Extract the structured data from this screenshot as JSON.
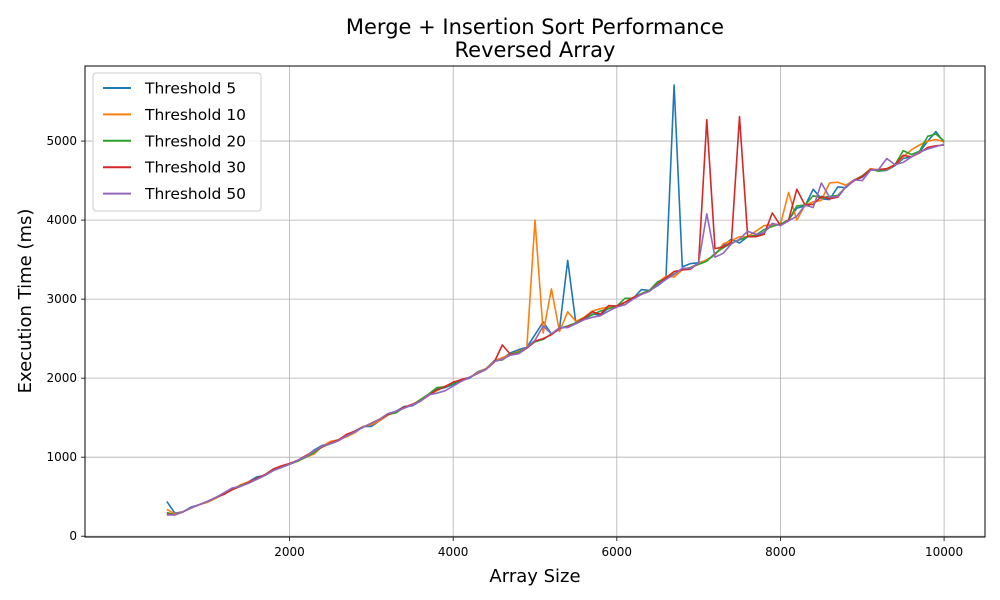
{
  "chart_data": {
    "type": "line",
    "title": "Merge + Insertion Sort Performance",
    "subtitle": "Reversed Array",
    "xlabel": "Array Size",
    "ylabel": "Execution Time (ms)",
    "xlim": [
      -500,
      10500
    ],
    "ylim": [
      -10,
      5950
    ],
    "xticks": [
      2000,
      4000,
      6000,
      8000,
      10000
    ],
    "yticks": [
      0,
      1000,
      2000,
      3000,
      4000,
      5000
    ],
    "grid": true,
    "legend_position": "top-left",
    "x": [
      500,
      600,
      700,
      800,
      900,
      1000,
      1100,
      1200,
      1300,
      1400,
      1500,
      1600,
      1700,
      1800,
      1900,
      2000,
      2100,
      2200,
      2300,
      2400,
      2500,
      2600,
      2700,
      2800,
      2900,
      3000,
      3100,
      3200,
      3300,
      3400,
      3500,
      3600,
      3700,
      3800,
      3900,
      4000,
      4100,
      4200,
      4300,
      4400,
      4500,
      4600,
      4700,
      4800,
      4900,
      5000,
      5100,
      5200,
      5300,
      5400,
      5500,
      5600,
      5700,
      5800,
      5900,
      6000,
      6100,
      6200,
      6300,
      6400,
      6500,
      6600,
      6700,
      6800,
      6900,
      7000,
      7100,
      7200,
      7300,
      7400,
      7500,
      7600,
      7700,
      7800,
      7900,
      8000,
      8100,
      8200,
      8300,
      8400,
      8500,
      8600,
      8700,
      8800,
      8900,
      9000,
      9100,
      9200,
      9300,
      9400,
      9500,
      9600,
      9700,
      9800,
      9900,
      10000
    ],
    "series": [
      {
        "name": "Threshold 5",
        "color": "#1f77b4",
        "values": [
          440,
          290,
          310,
          370,
          400,
          440,
          490,
          530,
          600,
          640,
          690,
          750,
          770,
          830,
          880,
          910,
          960,
          1010,
          1090,
          1150,
          1170,
          1210,
          1280,
          1330,
          1390,
          1390,
          1460,
          1530,
          1580,
          1640,
          1650,
          1710,
          1790,
          1860,
          1880,
          1920,
          1970,
          2000,
          2080,
          2120,
          2210,
          2250,
          2320,
          2360,
          2390,
          2550,
          2710,
          2560,
          2620,
          3490,
          2690,
          2740,
          2810,
          2800,
          2890,
          2900,
          2960,
          3010,
          3120,
          3110,
          3170,
          3250,
          5710,
          3410,
          3450,
          3460,
          3490,
          3560,
          3680,
          3760,
          3710,
          3790,
          3790,
          3850,
          3940,
          3950,
          4000,
          4150,
          4180,
          4390,
          4270,
          4260,
          4420,
          4410,
          4510,
          4540,
          4650,
          4620,
          4630,
          4690,
          4780,
          4800,
          4860,
          5000,
          5120,
          4980
        ]
      },
      {
        "name": "Threshold 10",
        "color": "#ff7f0e",
        "values": [
          340,
          280,
          310,
          360,
          400,
          430,
          480,
          540,
          590,
          650,
          690,
          720,
          780,
          840,
          880,
          910,
          950,
          1000,
          1040,
          1140,
          1200,
          1220,
          1260,
          1310,
          1390,
          1410,
          1460,
          1530,
          1570,
          1630,
          1660,
          1730,
          1790,
          1840,
          1900,
          1940,
          1980,
          2010,
          2070,
          2120,
          2220,
          2260,
          2300,
          2340,
          2380,
          4000,
          2570,
          3130,
          2590,
          2840,
          2720,
          2770,
          2850,
          2880,
          2900,
          2920,
          2960,
          3020,
          3070,
          3110,
          3210,
          3290,
          3280,
          3370,
          3400,
          3450,
          3500,
          3560,
          3700,
          3740,
          3790,
          3790,
          3860,
          3930,
          3940,
          3950,
          4350,
          4000,
          4190,
          4230,
          4250,
          4470,
          4480,
          4440,
          4510,
          4560,
          4650,
          4630,
          4640,
          4700,
          4800,
          4890,
          4950,
          5000,
          5020,
          4990
        ]
      },
      {
        "name": "Threshold 20",
        "color": "#2ca02c",
        "values": [
          300,
          270,
          310,
          360,
          400,
          440,
          490,
          540,
          590,
          640,
          680,
          720,
          770,
          830,
          870,
          910,
          950,
          1000,
          1060,
          1130,
          1170,
          1210,
          1270,
          1330,
          1380,
          1430,
          1480,
          1540,
          1560,
          1630,
          1660,
          1730,
          1800,
          1880,
          1890,
          1930,
          1980,
          2010,
          2060,
          2110,
          2220,
          2230,
          2300,
          2330,
          2380,
          2460,
          2490,
          2560,
          2630,
          2660,
          2700,
          2760,
          2800,
          2850,
          2880,
          2910,
          3010,
          3010,
          3070,
          3110,
          3220,
          3260,
          3320,
          3380,
          3400,
          3440,
          3480,
          3580,
          3650,
          3710,
          3750,
          3790,
          3810,
          3880,
          3920,
          3950,
          4000,
          4180,
          4190,
          4310,
          4280,
          4300,
          4310,
          4420,
          4500,
          4560,
          4640,
          4620,
          4650,
          4700,
          4880,
          4830,
          4870,
          5060,
          5090,
          5000
        ]
      },
      {
        "name": "Threshold 30",
        "color": "#d62728",
        "values": [
          280,
          270,
          310,
          360,
          400,
          440,
          490,
          530,
          590,
          630,
          680,
          730,
          780,
          850,
          890,
          920,
          960,
          1020,
          1080,
          1130,
          1180,
          1220,
          1290,
          1330,
          1380,
          1430,
          1480,
          1540,
          1580,
          1630,
          1670,
          1710,
          1780,
          1850,
          1890,
          1950,
          1980,
          2010,
          2060,
          2110,
          2200,
          2420,
          2300,
          2310,
          2380,
          2470,
          2500,
          2550,
          2630,
          2650,
          2690,
          2760,
          2840,
          2810,
          2920,
          2910,
          2960,
          3020,
          3060,
          3100,
          3190,
          3270,
          3350,
          3370,
          3380,
          3460,
          5270,
          3640,
          3660,
          3720,
          5310,
          3790,
          3790,
          3820,
          4090,
          3930,
          4000,
          4390,
          4190,
          4200,
          4300,
          4270,
          4290,
          4420,
          4500,
          4550,
          4640,
          4640,
          4650,
          4700,
          4820,
          4800,
          4850,
          4920,
          4940,
          4950
        ]
      },
      {
        "name": "Threshold 50",
        "color": "#9467bd",
        "values": [
          270,
          270,
          310,
          360,
          400,
          440,
          490,
          550,
          610,
          630,
          670,
          720,
          770,
          830,
          870,
          910,
          960,
          1010,
          1080,
          1140,
          1170,
          1210,
          1270,
          1320,
          1380,
          1430,
          1480,
          1550,
          1580,
          1620,
          1660,
          1710,
          1790,
          1810,
          1840,
          1900,
          1960,
          2010,
          2060,
          2110,
          2210,
          2240,
          2290,
          2310,
          2390,
          2480,
          2660,
          2560,
          2640,
          2640,
          2690,
          2740,
          2770,
          2790,
          2850,
          2900,
          2930,
          3000,
          3060,
          3100,
          3180,
          3250,
          3310,
          3390,
          3390,
          3460,
          4080,
          3530,
          3580,
          3700,
          3760,
          3860,
          3820,
          3840,
          3960,
          3930,
          3990,
          4050,
          4190,
          4160,
          4470,
          4290,
          4300,
          4420,
          4510,
          4500,
          4630,
          4640,
          4780,
          4700,
          4730,
          4800,
          4860,
          4900,
          4930,
          4960
        ]
      }
    ]
  }
}
